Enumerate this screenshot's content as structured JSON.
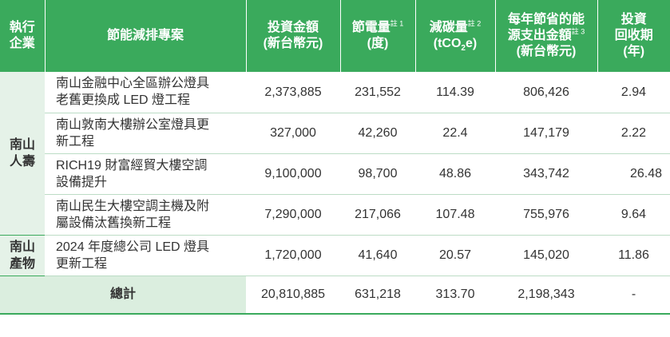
{
  "header": {
    "company": [
      "執行",
      "企業"
    ],
    "project": "節能減排專案",
    "investment": [
      "投資金額",
      "(新台幣元)"
    ],
    "electricity": {
      "label": "節電量",
      "note": "註 1",
      "unit": "(度)"
    },
    "carbon": {
      "label": "減碳量",
      "note": "註 2",
      "unit_prefix": "(tCO",
      "unit_sub": "2",
      "unit_suffix": "e)"
    },
    "savings": {
      "lines": [
        "每年節省的能",
        "源支出金額"
      ],
      "note": "註 3",
      "unit": "(新台幣元)"
    },
    "payback": [
      "投資",
      "回收期",
      "(年)"
    ]
  },
  "groups": [
    {
      "company": [
        "南山",
        "人壽"
      ],
      "rows": [
        {
          "project": [
            "南山金融中心全區辦公燈具",
            "老舊更換成 LED 燈工程"
          ],
          "investment": "2,373,885",
          "electricity": "231,552",
          "carbon": "114.39",
          "savings": "806,426",
          "payback": "2.94"
        },
        {
          "project": [
            "南山敦南大樓辦公室燈具更",
            "新工程"
          ],
          "investment": "327,000",
          "electricity": "42,260",
          "carbon": "22.4",
          "savings": "147,179",
          "payback": "2.22"
        },
        {
          "project": [
            "RICH19 財富經貿大樓空調",
            "設備提升"
          ],
          "investment": "9,100,000",
          "electricity": "98,700",
          "carbon": "48.86",
          "savings": "343,742",
          "payback": "26.48"
        },
        {
          "project": [
            "南山民生大樓空調主機及附",
            "屬設備汰舊換新工程"
          ],
          "investment": "7,290,000",
          "electricity": "217,066",
          "carbon": "107.48",
          "savings": "755,976",
          "payback": "9.64"
        }
      ]
    },
    {
      "company": [
        "南山",
        "產物"
      ],
      "rows": [
        {
          "project": [
            "2024 年度總公司 LED 燈具",
            "更新工程"
          ],
          "investment": "1,720,000",
          "electricity": "41,640",
          "carbon": "20.57",
          "savings": "145,020",
          "payback": "11.86"
        }
      ]
    }
  ],
  "total": {
    "label": "總計",
    "investment": "20,810,885",
    "electricity": "631,218",
    "carbon": "313.70",
    "savings": "2,198,343",
    "payback": "-"
  },
  "colors": {
    "header_bg": "#3aaa5c",
    "company_bg": "#e5f2e8",
    "total_bg": "#dbeedf"
  }
}
